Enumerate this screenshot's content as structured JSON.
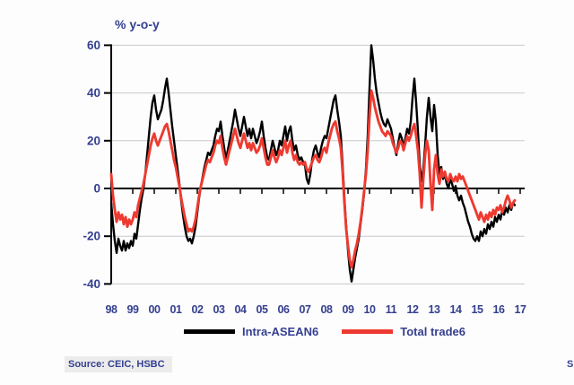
{
  "chart": {
    "axis_title": "% y-o-y",
    "source_note": "Source: CEIC, HSBC",
    "right_edge_text_fragment": "S"
  },
  "colors": {
    "text_navy": "#343f90",
    "series_intra_asean6": "#000000",
    "series_total_trade6": "#ee3a30",
    "gridline": "#c9c9c9",
    "axis": "#000000",
    "source_band_bg": "#ececec",
    "background": "#fdfdfd"
  },
  "legend": {
    "items": [
      {
        "label": "Intra-ASEAN6",
        "color": "#000000"
      },
      {
        "label": "Total trade6",
        "color": "#ee3a30"
      }
    ]
  },
  "chart_data": {
    "type": "line",
    "title": "% y-o-y",
    "x_unit": "monthly, Jan 1998 - Oct 2016",
    "x_tick_labels": [
      "98",
      "99",
      "00",
      "01",
      "02",
      "03",
      "04",
      "05",
      "06",
      "07",
      "08",
      "09",
      "10",
      "11",
      "12",
      "13",
      "14",
      "15",
      "16",
      "17"
    ],
    "y_ticks": [
      60,
      40,
      20,
      0,
      -20,
      -40
    ],
    "ylim": [
      -40,
      60
    ],
    "grid": true,
    "legend_position": "bottom-center",
    "series": [
      {
        "name": "Intra-ASEAN6",
        "color": "#000000",
        "values": [
          -6,
          -15,
          -22,
          -27,
          -21,
          -24,
          -26,
          -22,
          -26,
          -23,
          -25,
          -22,
          -24,
          -19,
          -21,
          -15,
          -9,
          -4,
          0,
          6,
          14,
          22,
          30,
          36,
          39,
          33,
          29,
          31,
          33,
          37,
          42,
          46,
          40,
          33,
          26,
          20,
          14,
          8,
          2,
          -5,
          -11,
          -16,
          -20,
          -22,
          -21,
          -23,
          -20,
          -16,
          -10,
          -4,
          1,
          5,
          9,
          12,
          15,
          14,
          16,
          18,
          22,
          25,
          24,
          28,
          22,
          17,
          12,
          16,
          20,
          24,
          28,
          33,
          29,
          25,
          22,
          26,
          30,
          26,
          22,
          25,
          21,
          25,
          22,
          19,
          21,
          24,
          28,
          22,
          17,
          13,
          12,
          16,
          20,
          17,
          14,
          16,
          20,
          18,
          22,
          26,
          20,
          24,
          26,
          20,
          16,
          18,
          14,
          12,
          13,
          11,
          10,
          4,
          2,
          6,
          12,
          16,
          18,
          15,
          13,
          17,
          20,
          22,
          21,
          25,
          29,
          33,
          37,
          39,
          33,
          28,
          22,
          10,
          -4,
          -16,
          -26,
          -34,
          -39,
          -34,
          -29,
          -25,
          -21,
          -15,
          -9,
          -2,
          8,
          22,
          42,
          60,
          54,
          46,
          40,
          36,
          32,
          29,
          27,
          26,
          29,
          27,
          25,
          21,
          17,
          14,
          19,
          23,
          21,
          17,
          21,
          25,
          23,
          28,
          38,
          46,
          36,
          24,
          10,
          3,
          8,
          18,
          30,
          38,
          30,
          24,
          35,
          28,
          14,
          6,
          9,
          4,
          6,
          2,
          0,
          4,
          2,
          -1,
          1,
          -3,
          -5,
          -3,
          -6,
          -8,
          -11,
          -14,
          -16,
          -19,
          -21,
          -22,
          -20,
          -22,
          -18,
          -20,
          -17,
          -19,
          -15,
          -17,
          -14,
          -16,
          -12,
          -14,
          -11,
          -13,
          -9,
          -11,
          -8,
          -10,
          -7,
          -9,
          -6,
          -7
        ]
      },
      {
        "name": "Total trade6",
        "color": "#ee3a30",
        "values": [
          6,
          -3,
          -9,
          -14,
          -10,
          -13,
          -11,
          -15,
          -12,
          -16,
          -13,
          -15,
          -13,
          -10,
          -12,
          -7,
          -4,
          -1,
          2,
          6,
          10,
          14,
          18,
          21,
          23,
          20,
          18,
          20,
          22,
          24,
          26,
          27,
          24,
          20,
          16,
          12,
          9,
          5,
          1,
          -4,
          -8,
          -12,
          -15,
          -18,
          -17,
          -18,
          -16,
          -13,
          -8,
          -3,
          1,
          4,
          7,
          10,
          12,
          11,
          13,
          15,
          18,
          20,
          19,
          22,
          17,
          13,
          10,
          13,
          16,
          19,
          22,
          25,
          22,
          19,
          17,
          20,
          23,
          20,
          17,
          19,
          16,
          19,
          17,
          15,
          16,
          18,
          21,
          17,
          13,
          10,
          10,
          13,
          16,
          13,
          11,
          13,
          16,
          14,
          17,
          20,
          15,
          18,
          20,
          15,
          12,
          14,
          11,
          10,
          11,
          10,
          11,
          8,
          7,
          9,
          11,
          13,
          14,
          12,
          11,
          13,
          16,
          17,
          15,
          19,
          22,
          25,
          27,
          28,
          24,
          21,
          17,
          7,
          -6,
          -17,
          -24,
          -30,
          -33,
          -30,
          -26,
          -23,
          -19,
          -14,
          -8,
          -1,
          6,
          16,
          30,
          41,
          38,
          34,
          31,
          28,
          26,
          24,
          23,
          22,
          24,
          23,
          22,
          19,
          17,
          15,
          17,
          20,
          19,
          16,
          19,
          22,
          20,
          22,
          25,
          27,
          22,
          16,
          6,
          -8,
          4,
          14,
          20,
          16,
          2,
          -9,
          8,
          14,
          6,
          2,
          8,
          5,
          7,
          4,
          3,
          6,
          4,
          3,
          5,
          3,
          6,
          4,
          5,
          3,
          1,
          -1,
          -3,
          -5,
          -7,
          -9,
          -11,
          -13,
          -10,
          -12,
          -14,
          -11,
          -13,
          -10,
          -12,
          -9,
          -11,
          -8,
          -9,
          -7,
          -10,
          -8,
          -5,
          -3,
          -5,
          -8,
          -6,
          -5
        ]
      }
    ]
  }
}
